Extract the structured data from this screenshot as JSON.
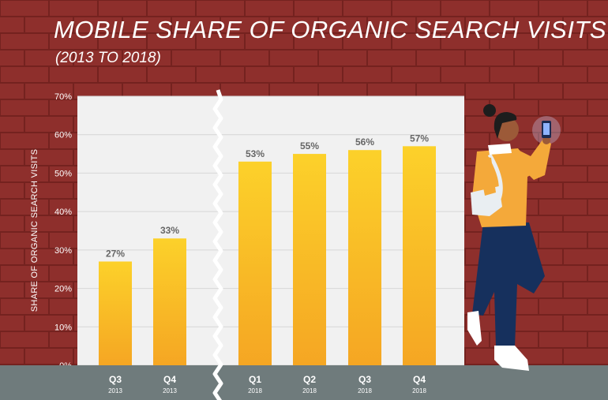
{
  "title": "MOBILE SHARE OF ORGANIC SEARCH VISITS",
  "subtitle": "(2013 TO 2018)",
  "colors": {
    "brick": "#8e2f2c",
    "mortar": "#74221f",
    "panel": "#f1f1f1",
    "bar_top": "#fcd12a",
    "bar_bottom": "#f5a623",
    "ground": "#6f7b7c",
    "text_gray": "#666666"
  },
  "chart_data": {
    "type": "bar",
    "ylabel": "SHARE OF ORGANIC SEARCH VISITS",
    "ylim": [
      0,
      70
    ],
    "yticks": [
      0,
      10,
      20,
      30,
      40,
      50,
      60,
      70
    ],
    "ytick_labels": [
      "0%",
      "10%",
      "20%",
      "30%",
      "40%",
      "50%",
      "60%",
      "70%"
    ],
    "axis_break": "between Q4 2013 and Q1 2018",
    "categories": [
      "Q3",
      "Q4",
      "Q1",
      "Q2",
      "Q3",
      "Q4"
    ],
    "category_years": [
      "2013",
      "2013",
      "2018",
      "2018",
      "2018",
      "2018"
    ],
    "values": [
      27,
      33,
      53,
      55,
      56,
      57
    ],
    "data_labels": [
      "27%",
      "33%",
      "53%",
      "55%",
      "56%",
      "57%"
    ]
  }
}
